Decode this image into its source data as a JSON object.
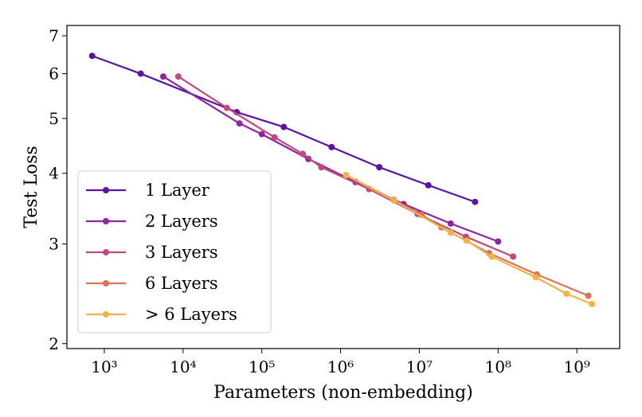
{
  "chart_data": {
    "type": "line",
    "xlabel": "Parameters (non-embedding)",
    "ylabel": "Test Loss",
    "xscale": "log",
    "yscale": "log",
    "xlim": [
      335,
      3500000000
    ],
    "ylim": [
      1.96,
      7.3
    ],
    "xticks": [
      {
        "value": 1000,
        "label": "10³"
      },
      {
        "value": 10000,
        "label": "10⁴"
      },
      {
        "value": 100000,
        "label": "10⁵"
      },
      {
        "value": 1000000,
        "label": "10⁶"
      },
      {
        "value": 10000000,
        "label": "10⁷"
      },
      {
        "value": 100000000,
        "label": "10⁸"
      },
      {
        "value": 1000000000,
        "label": "10⁹"
      }
    ],
    "yticks": [
      2,
      3,
      4,
      5,
      6,
      7
    ],
    "legend_position": "lower left",
    "series": [
      {
        "name": "1 Layer",
        "color": "#5c12a6",
        "x": [
          700,
          2900,
          48000,
          190000,
          770000,
          3100000,
          13000000,
          51000000
        ],
        "values": [
          6.45,
          6.0,
          5.13,
          4.83,
          4.45,
          4.1,
          3.81,
          3.56
        ]
      },
      {
        "name": "2 Layers",
        "color": "#8f24a0",
        "x": [
          5600,
          52000,
          100000,
          390000,
          1550000,
          6300000,
          25000000,
          100000000
        ],
        "values": [
          5.93,
          4.9,
          4.69,
          4.24,
          3.86,
          3.53,
          3.26,
          3.03
        ]
      },
      {
        "name": "3 Layers",
        "color": "#c04a7c",
        "x": [
          8700,
          36000,
          145000,
          330000,
          570000,
          2300000,
          9500000,
          39000000,
          155000000
        ],
        "values": [
          5.93,
          5.22,
          4.63,
          4.33,
          4.1,
          3.75,
          3.39,
          3.09,
          2.85
        ]
      },
      {
        "name": "6 Layers",
        "color": "#db7358",
        "x": [
          1170000,
          4750000,
          10700000,
          19000000,
          77000000,
          310000000,
          1400000000
        ],
        "values": [
          3.97,
          3.59,
          3.38,
          3.21,
          2.89,
          2.65,
          2.43
        ]
      },
      {
        "name": "> 6 Layers",
        "color": "#f2b24a",
        "x": [
          1170000,
          4750000,
          25000000,
          40000000,
          83000000,
          300000000,
          740000000,
          1550000000
        ],
        "values": [
          3.97,
          3.58,
          3.14,
          3.04,
          2.85,
          2.62,
          2.45,
          2.35
        ]
      }
    ]
  }
}
